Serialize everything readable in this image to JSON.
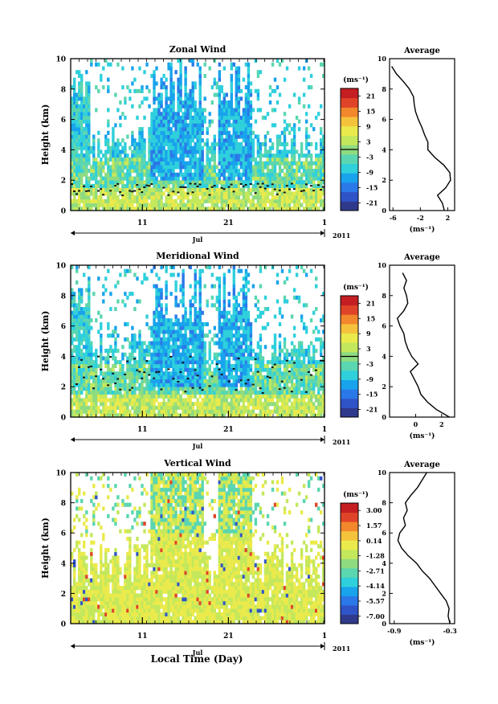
{
  "chart_data": [
    {
      "type": "heatmap",
      "title": "Zonal Wind",
      "ylabel": "Height (km)",
      "ylim": [
        0,
        10
      ],
      "yticks": [
        "0",
        "2",
        "4",
        "6",
        "8",
        "10"
      ],
      "xticks": [
        "11",
        "21",
        "1"
      ],
      "month_label": "Jul",
      "year_label": "2011",
      "colorbar": {
        "unit_label": "(ms⁻¹)",
        "ticks": [
          "21",
          "15",
          "9",
          "3",
          "-3",
          "-9",
          "-15",
          "-21"
        ],
        "range": [
          -24,
          24
        ],
        "zero_line": 0
      },
      "average": {
        "title": "Average",
        "xlabel": "(ms⁻¹)",
        "xticks": [
          "-6",
          "-2",
          "2"
        ],
        "xtick_values": [
          -6,
          -2,
          2
        ],
        "xlim": [
          -6.5,
          3
        ],
        "heights": [
          0,
          0.5,
          1,
          1.5,
          2,
          2.5,
          3,
          3.5,
          4,
          4.5,
          5,
          5.5,
          6,
          6.5,
          7,
          7.5,
          8,
          8.5,
          9,
          9.5
        ],
        "values": [
          1.5,
          1.2,
          0.5,
          1.7,
          2.4,
          2.3,
          1.4,
          0.1,
          -0.9,
          -0.9,
          -1.4,
          -1.8,
          -2.3,
          -2.7,
          -2.9,
          -3.0,
          -3.6,
          -4.5,
          -5.5,
          -6.2
        ]
      }
    },
    {
      "type": "heatmap",
      "title": "Meridional Wind",
      "ylabel": "Height (km)",
      "ylim": [
        0,
        10
      ],
      "yticks": [
        "0",
        "2",
        "4",
        "6",
        "8",
        "10"
      ],
      "xticks": [
        "11",
        "21",
        "1"
      ],
      "month_label": "Jul",
      "year_label": "2011",
      "colorbar": {
        "unit_label": "(ms⁻¹)",
        "ticks": [
          "21",
          "15",
          "9",
          "3",
          "-3",
          "-9",
          "-15",
          "-21"
        ],
        "range": [
          -24,
          24
        ],
        "zero_line": 0
      },
      "average": {
        "title": "Average",
        "xlabel": "(ms⁻¹)",
        "xticks": [
          "0",
          "2"
        ],
        "xtick_values": [
          0,
          2
        ],
        "xlim": [
          -2,
          3
        ],
        "heights": [
          0,
          0.5,
          1,
          1.5,
          2,
          2.5,
          3,
          3.5,
          4,
          4.5,
          5,
          5.5,
          6,
          6.5,
          7,
          7.5,
          8,
          8.5,
          9,
          9.5
        ],
        "values": [
          2.6,
          1.6,
          0.9,
          0.4,
          0.2,
          -0.1,
          -0.4,
          0.2,
          -0.3,
          -0.6,
          -0.8,
          -0.9,
          -1.2,
          -1.4,
          -0.9,
          -0.6,
          -0.7,
          -0.9,
          -0.7,
          -1.0
        ]
      }
    },
    {
      "type": "heatmap",
      "title": "Vertical Wind",
      "ylabel": "Height (km)",
      "xlabel": "Local Time (Day)",
      "ylim": [
        0,
        10
      ],
      "yticks": [
        "0",
        "2",
        "4",
        "6",
        "8",
        "10"
      ],
      "xticks": [
        "11",
        "21",
        "1"
      ],
      "month_label": "Jul",
      "year_label": "2011",
      "colorbar": {
        "unit_label": "(ms⁻¹)",
        "ticks": [
          "3.00",
          "1.57",
          "0.14",
          "-1.28",
          "-2.71",
          "-4.14",
          "-5.57",
          "-7.00"
        ],
        "range": [
          -7.7,
          3.7
        ]
      },
      "average": {
        "title": "Average",
        "xlabel": "(ms⁻¹)",
        "xticks": [
          "-0.9",
          "-0.3"
        ],
        "xtick_values": [
          -0.9,
          -0.3
        ],
        "xlim": [
          -0.95,
          -0.25
        ],
        "heights": [
          0,
          0.5,
          1,
          1.5,
          2,
          2.5,
          3,
          3.5,
          4,
          4.5,
          5,
          5.5,
          6,
          6.5,
          7,
          7.5,
          8,
          8.5,
          9,
          9.5,
          10
        ],
        "values": [
          -0.3,
          -0.32,
          -0.31,
          -0.34,
          -0.4,
          -0.46,
          -0.52,
          -0.6,
          -0.66,
          -0.75,
          -0.82,
          -0.86,
          -0.84,
          -0.78,
          -0.8,
          -0.76,
          -0.78,
          -0.72,
          -0.65,
          -0.6,
          -0.55
        ]
      }
    }
  ]
}
